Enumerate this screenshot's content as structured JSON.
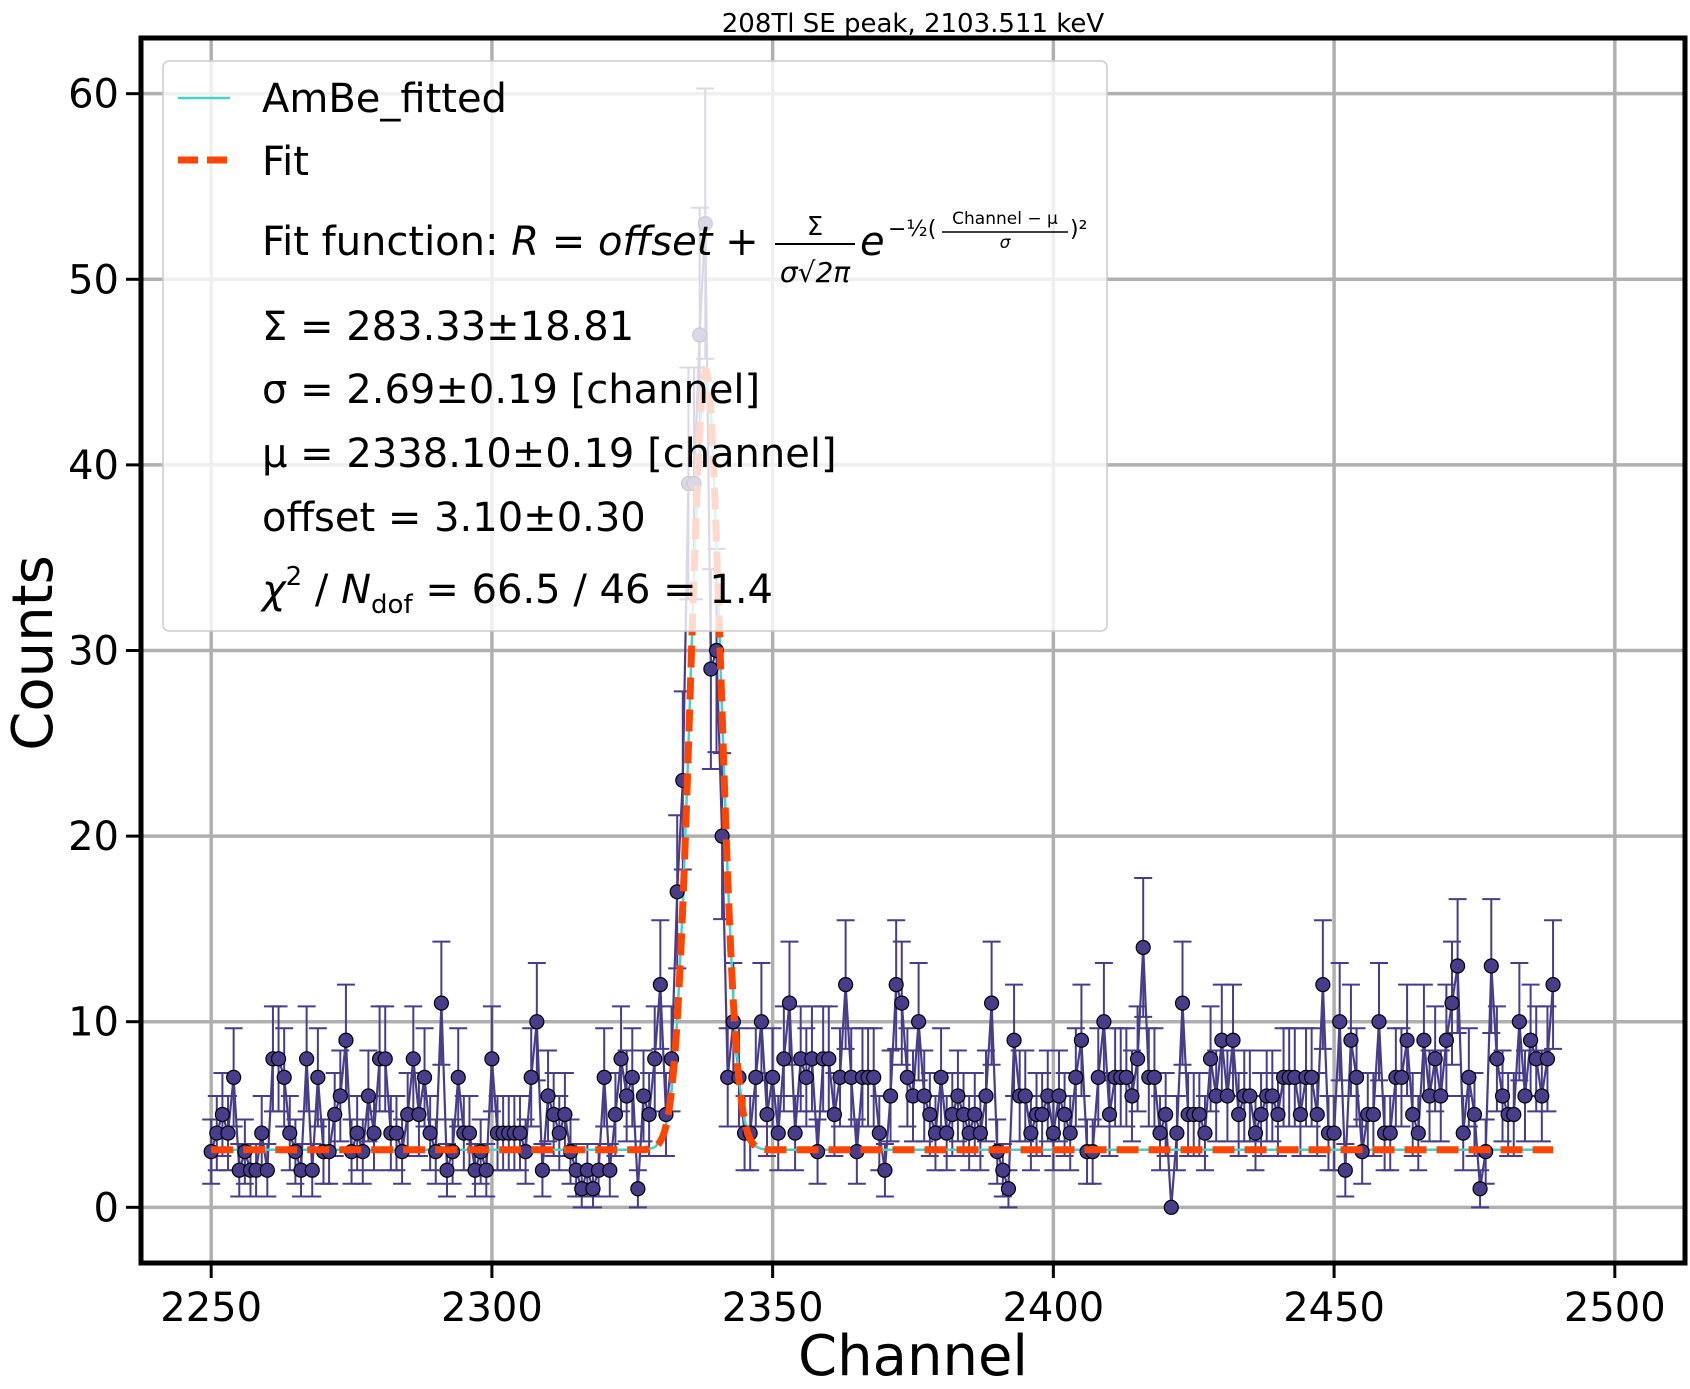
{
  "chart_data": {
    "type": "scatter",
    "title": "208Tl SE peak, 2103.511 keV",
    "xlabel": "Channel",
    "ylabel": "Counts",
    "xlim": [
      2237.5,
      2512.5
    ],
    "ylim": [
      -3,
      63
    ],
    "xticks": [
      2250,
      2300,
      2350,
      2400,
      2450,
      2500
    ],
    "yticks": [
      0,
      10,
      20,
      30,
      40,
      50,
      60
    ],
    "grid": true,
    "legend_placement": "top-left",
    "colors": {
      "data_line": "#483D8B",
      "data_marker": "#483D8B",
      "fitted_line": "#48D1CC",
      "fit": "#FF4500"
    },
    "legend": {
      "data_label": "AmBe_fitted",
      "fit_label": "Fit",
      "fit_function_prefix": "Fit function: ",
      "fit_function_formula": "R = offset + Σ/(σ√2π) e^(−½((Channel − μ)/σ)²)",
      "fit_formula_R": "R",
      "fit_formula_eq": " = ",
      "fit_formula_offset": "offset",
      "fit_formula_plus": " + ",
      "fit_formula_num": "Σ",
      "fit_formula_den": "σ√2π",
      "fit_formula_e": "e",
      "fit_formula_exp": "−½(",
      "fit_formula_frac_num": "Channel − μ",
      "fit_formula_frac_den": "σ",
      "fit_formula_exp_end": ")²",
      "param_sigma_total": "Σ = 283.33±18.81",
      "param_sigma": "σ = 2.69±0.19 [channel]",
      "param_mu": "μ = 2338.10±0.19 [channel]",
      "param_offset": "offset = 3.10±0.30",
      "param_chi2": "χ² / Ndof = 66.5 / 46 = 1.4",
      "chi2_chi": "χ",
      "chi2_sup": "2",
      "chi2_slash": " / ",
      "chi2_N": "N",
      "chi2_sub": "dof",
      "chi2_rest": " = 66.5 / 46 = 1.4"
    },
    "fit": {
      "sum": 283.33,
      "sigma": 2.69,
      "mu": 2338.1,
      "offset": 3.1
    },
    "x_start": 2250,
    "y": [
      3,
      4,
      5,
      4,
      7,
      2,
      3,
      2,
      2,
      4,
      2,
      8,
      8,
      7,
      4,
      3,
      2,
      8,
      2,
      7,
      3,
      3,
      5,
      6,
      9,
      3,
      4,
      3,
      6,
      4,
      8,
      8,
      4,
      4,
      3,
      5,
      8,
      5,
      7,
      4,
      3,
      11,
      2,
      3,
      7,
      4,
      4,
      2,
      3,
      2,
      8,
      4,
      4,
      4,
      4,
      4,
      3,
      7,
      10,
      2,
      6,
      5,
      4,
      5,
      3,
      2,
      1,
      2,
      1,
      2,
      7,
      2,
      5,
      8,
      6,
      7,
      1,
      6,
      5,
      8,
      12,
      5,
      8,
      17,
      23,
      39,
      39,
      47,
      53,
      29,
      30,
      20,
      7,
      10,
      7,
      4,
      4,
      7,
      10,
      5,
      7,
      4,
      8,
      11,
      4,
      8,
      7,
      8,
      3,
      8,
      8,
      5,
      7,
      12,
      7,
      3,
      7,
      7,
      7,
      4,
      2,
      6,
      12,
      11,
      7,
      6,
      10,
      6,
      5,
      4,
      7,
      4,
      5,
      6,
      5,
      4,
      5,
      4,
      6,
      11,
      3,
      2,
      1,
      9,
      6,
      6,
      4,
      5,
      5,
      6,
      4,
      6,
      5,
      4,
      7,
      9,
      3,
      3,
      7,
      10,
      5,
      7,
      7,
      7,
      6,
      8,
      14,
      7,
      7,
      4,
      5,
      0,
      4,
      11,
      5,
      5,
      5,
      4,
      8,
      6,
      9,
      6,
      9,
      5,
      6,
      6,
      4,
      5,
      6,
      6,
      5,
      7,
      7,
      7,
      5,
      7,
      7,
      5,
      12,
      4,
      4,
      10,
      2,
      9,
      7,
      3,
      5,
      5,
      10,
      4,
      4,
      7,
      7,
      9,
      5,
      4,
      9,
      6,
      8,
      6,
      9,
      11,
      13,
      4,
      7,
      5,
      1,
      3,
      13,
      8,
      6,
      5,
      5,
      10,
      6,
      9,
      8,
      6,
      8,
      12
    ]
  }
}
